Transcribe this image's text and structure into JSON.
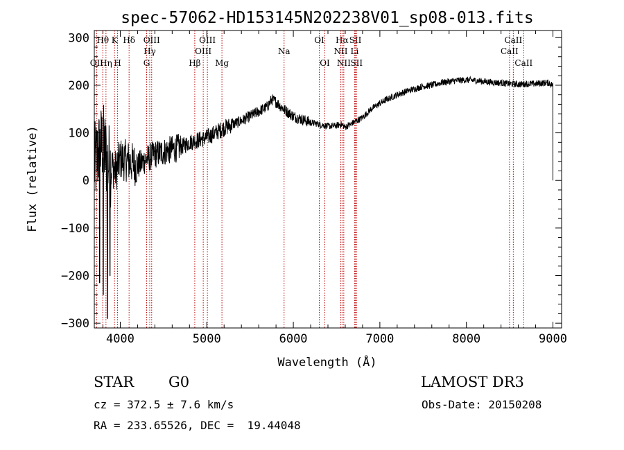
{
  "chart_data": {
    "type": "line",
    "title": "spec-57062-HD153145N202238V01_sp08-013.fits",
    "xlabel": "Wavelength (Å)",
    "ylabel": "Flux (relative)",
    "xlim": [
      3700,
      9100
    ],
    "ylim": [
      -310,
      315
    ],
    "xticks": [
      4000,
      5000,
      6000,
      7000,
      8000,
      9000
    ],
    "yticks": [
      -300,
      -200,
      -100,
      0,
      100,
      200,
      300
    ],
    "series": [
      {
        "name": "spectrum",
        "continuum": [
          [
            3700,
            30
          ],
          [
            3750,
            60
          ],
          [
            3800,
            80
          ],
          [
            3850,
            40
          ],
          [
            3900,
            30
          ],
          [
            3950,
            20
          ],
          [
            4000,
            45
          ],
          [
            4100,
            40
          ],
          [
            4200,
            30
          ],
          [
            4300,
            45
          ],
          [
            4400,
            55
          ],
          [
            4500,
            60
          ],
          [
            4600,
            65
          ],
          [
            4700,
            70
          ],
          [
            4800,
            80
          ],
          [
            4900,
            85
          ],
          [
            5000,
            90
          ],
          [
            5100,
            100
          ],
          [
            5200,
            110
          ],
          [
            5300,
            118
          ],
          [
            5400,
            125
          ],
          [
            5500,
            135
          ],
          [
            5600,
            145
          ],
          [
            5700,
            155
          ],
          [
            5750,
            170
          ],
          [
            5800,
            165
          ],
          [
            5900,
            148
          ],
          [
            6000,
            135
          ],
          [
            6100,
            128
          ],
          [
            6200,
            122
          ],
          [
            6300,
            118
          ],
          [
            6400,
            114
          ],
          [
            6500,
            115
          ],
          [
            6550,
            118
          ],
          [
            6600,
            112
          ],
          [
            6700,
            122
          ],
          [
            6800,
            132
          ],
          [
            6900,
            150
          ],
          [
            7000,
            162
          ],
          [
            7100,
            172
          ],
          [
            7200,
            180
          ],
          [
            7300,
            187
          ],
          [
            7400,
            192
          ],
          [
            7500,
            198
          ],
          [
            7600,
            200
          ],
          [
            7700,
            205
          ],
          [
            7800,
            208
          ],
          [
            7900,
            210
          ],
          [
            8000,
            211
          ],
          [
            8100,
            210
          ],
          [
            8200,
            208
          ],
          [
            8300,
            206
          ],
          [
            8400,
            205
          ],
          [
            8500,
            203
          ],
          [
            8600,
            202
          ],
          [
            8700,
            203
          ],
          [
            8800,
            203
          ],
          [
            8900,
            205
          ],
          [
            8950,
            205
          ],
          [
            9000,
            200
          ]
        ]
      }
    ],
    "line_markers": [
      {
        "label": "OII",
        "wave": 3727,
        "row": 3
      },
      {
        "label": "Hθ",
        "wave": 3798,
        "row": 1
      },
      {
        "label": "Hη",
        "wave": 3835,
        "row": 3
      },
      {
        "label": "K",
        "wave": 3934,
        "row": 1
      },
      {
        "label": "H",
        "wave": 3969,
        "row": 3
      },
      {
        "label": "Hδ",
        "wave": 4102,
        "row": 1
      },
      {
        "label": "G",
        "wave": 4305,
        "row": 3
      },
      {
        "label": "OIII",
        "wave": 4363,
        "row": 1
      },
      {
        "label": "Hγ",
        "wave": 4341,
        "row": 2
      },
      {
        "label": "Hβ",
        "wave": 4861,
        "row": 3
      },
      {
        "label": "OIII",
        "wave": 4959,
        "row": 2
      },
      {
        "label": "OIII",
        "wave": 5007,
        "row": 1
      },
      {
        "label": "Mg",
        "wave": 5175,
        "row": 3
      },
      {
        "label": "Na",
        "wave": 5893,
        "row": 2
      },
      {
        "label": "OI",
        "wave": 6300,
        "row": 1
      },
      {
        "label": "OI",
        "wave": 6364,
        "row": 3
      },
      {
        "label": "Hα",
        "wave": 6563,
        "row": 1
      },
      {
        "label": "NII",
        "wave": 6548,
        "row": 2
      },
      {
        "label": "NII",
        "wave": 6583,
        "row": 3
      },
      {
        "label": "SII",
        "wave": 6717,
        "row": 1
      },
      {
        "label": "Li",
        "wave": 6708,
        "row": 2
      },
      {
        "label": "SII",
        "wave": 6731,
        "row": 3
      },
      {
        "label": "CaII",
        "wave": 8542,
        "row": 1
      },
      {
        "label": "CaII",
        "wave": 8498,
        "row": 2
      },
      {
        "label": "CaII",
        "wave": 8662,
        "row": 3
      }
    ],
    "legend": "none",
    "grid": false
  },
  "info": {
    "object_class": "STAR",
    "subclass": "G0",
    "survey": "LAMOST DR3",
    "redshift_line": "cz = 372.5 ± 7.6 km/s",
    "obs_date_line": "Obs-Date: 20150208",
    "coord_line": "RA = 233.65526, DEC =  19.44048"
  }
}
